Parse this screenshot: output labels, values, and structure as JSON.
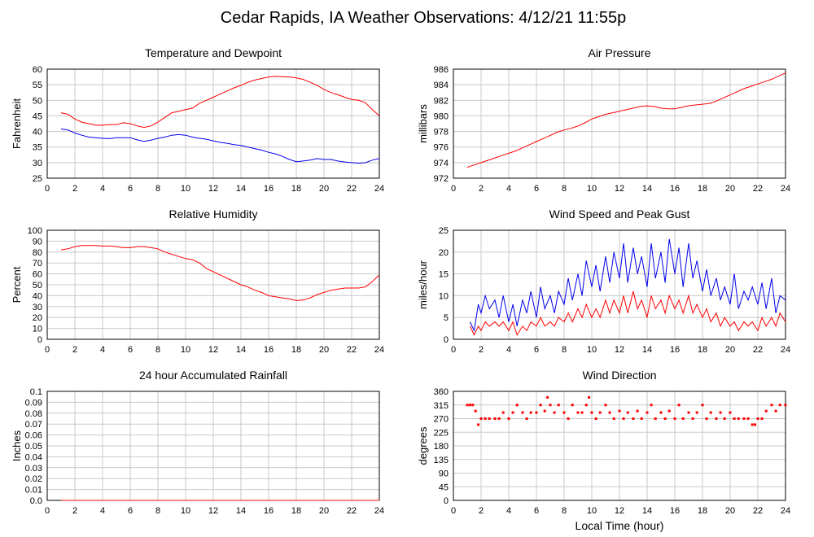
{
  "page": {
    "title": "Cedar Rapids, IA Weather Observations: 4/12/21 11:55p",
    "xlabel": "Local Time (hour)"
  },
  "colors": {
    "red": "#ff0000",
    "blue": "#0000ee",
    "grid": "#c8c8c8"
  },
  "chart_data": [
    {
      "id": "temp",
      "type": "line",
      "title": "Temperature and Dewpoint",
      "ylabel": "Fahrenheit",
      "xlim": [
        0,
        24
      ],
      "ylim": [
        25,
        60
      ],
      "xticks": [
        "0",
        "2",
        "4",
        "6",
        "8",
        "10",
        "12",
        "14",
        "16",
        "18",
        "20",
        "22",
        "24"
      ],
      "yticks": [
        "25",
        "30",
        "35",
        "40",
        "45",
        "50",
        "55",
        "60"
      ],
      "grid": true,
      "series": [
        {
          "color": "red",
          "x": [
            1.0,
            1.5,
            2.0,
            2.5,
            3.0,
            3.5,
            4.0,
            4.5,
            5.0,
            5.5,
            6.0,
            6.5,
            7.0,
            7.5,
            8.0,
            8.5,
            9.0,
            9.5,
            10.0,
            10.5,
            11.0,
            11.5,
            12.0,
            12.5,
            13.0,
            13.5,
            14.0,
            14.5,
            15.0,
            15.5,
            16.0,
            16.5,
            17.0,
            17.5,
            18.0,
            18.5,
            19.0,
            19.5,
            20.0,
            20.5,
            21.0,
            21.5,
            22.0,
            22.5,
            23.0,
            23.5,
            24.0
          ],
          "y": [
            46,
            45.5,
            44,
            43,
            42.5,
            42,
            42,
            42.2,
            42.2,
            42.8,
            42.5,
            41.8,
            41.3,
            41.8,
            43,
            44.5,
            46,
            46.5,
            47,
            47.5,
            49,
            50,
            51,
            52,
            53,
            54,
            54.8,
            55.8,
            56.5,
            57,
            57.5,
            57.7,
            57.6,
            57.5,
            57.2,
            56.7,
            55.8,
            54.8,
            53.5,
            52.5,
            51.8,
            51,
            50.3,
            50,
            49.2,
            47,
            45
          ]
        },
        {
          "color": "blue",
          "x": [
            1.0,
            1.5,
            2.0,
            2.5,
            3.0,
            3.5,
            4.0,
            4.5,
            5.0,
            5.5,
            6.0,
            6.5,
            7.0,
            7.5,
            8.0,
            8.5,
            9.0,
            9.5,
            10.0,
            10.5,
            11.0,
            11.5,
            12.0,
            12.5,
            13.0,
            13.5,
            14.0,
            14.5,
            15.0,
            15.5,
            16.0,
            16.5,
            17.0,
            17.5,
            18.0,
            18.5,
            19.0,
            19.5,
            20.0,
            20.5,
            21.0,
            21.5,
            22.0,
            22.5,
            23.0,
            23.5,
            24.0
          ],
          "y": [
            40.8,
            40.5,
            39.5,
            38.8,
            38.2,
            38,
            37.8,
            37.7,
            38,
            38,
            38,
            37.3,
            36.8,
            37.2,
            37.8,
            38.2,
            38.8,
            39,
            38.8,
            38.2,
            37.8,
            37.5,
            37,
            36.5,
            36.2,
            35.8,
            35.5,
            35,
            34.5,
            34,
            33.3,
            32.8,
            32,
            31,
            30.3,
            30.5,
            30.8,
            31.3,
            31,
            31,
            30.5,
            30.2,
            30,
            29.8,
            30,
            30.8,
            31.3
          ]
        }
      ]
    },
    {
      "id": "pressure",
      "type": "line",
      "title": "Air Pressure",
      "ylabel": "millibars",
      "xlim": [
        0,
        24
      ],
      "ylim": [
        972,
        986
      ],
      "xticks": [
        "0",
        "2",
        "4",
        "6",
        "8",
        "10",
        "12",
        "14",
        "16",
        "18",
        "20",
        "22",
        "24"
      ],
      "yticks": [
        "972",
        "974",
        "976",
        "978",
        "980",
        "982",
        "984",
        "986"
      ],
      "grid": true,
      "series": [
        {
          "color": "red",
          "x": [
            1.0,
            1.5,
            2.0,
            2.5,
            3.0,
            3.5,
            4.0,
            4.5,
            5.0,
            5.5,
            6.0,
            6.5,
            7.0,
            7.5,
            8.0,
            8.5,
            9.0,
            9.5,
            10.0,
            10.5,
            11.0,
            11.5,
            12.0,
            12.5,
            13.0,
            13.5,
            14.0,
            14.5,
            15.0,
            15.5,
            16.0,
            16.5,
            17.0,
            17.5,
            18.0,
            18.5,
            19.0,
            19.5,
            20.0,
            20.5,
            21.0,
            21.5,
            22.0,
            22.5,
            23.0,
            23.5,
            24.0
          ],
          "y": [
            973.4,
            973.7,
            974,
            974.3,
            974.6,
            974.9,
            975.2,
            975.5,
            975.9,
            976.3,
            976.7,
            977.1,
            977.5,
            977.9,
            978.2,
            978.4,
            978.7,
            979.1,
            979.6,
            979.9,
            980.2,
            980.4,
            980.6,
            980.8,
            981.0,
            981.2,
            981.3,
            981.2,
            981.0,
            980.9,
            980.9,
            981.1,
            981.3,
            981.4,
            981.5,
            981.6,
            981.9,
            982.3,
            982.7,
            983.1,
            983.5,
            983.8,
            984.1,
            984.4,
            984.7,
            985.1,
            985.5
          ]
        }
      ]
    },
    {
      "id": "humidity",
      "type": "line",
      "title": "Relative Humidity",
      "ylabel": "Percent",
      "xlim": [
        0,
        24
      ],
      "ylim": [
        0,
        100
      ],
      "xticks": [
        "0",
        "2",
        "4",
        "6",
        "8",
        "10",
        "12",
        "14",
        "16",
        "18",
        "20",
        "22",
        "24"
      ],
      "yticks": [
        "0",
        "10",
        "20",
        "30",
        "40",
        "50",
        "60",
        "70",
        "80",
        "90",
        "100"
      ],
      "grid": true,
      "series": [
        {
          "color": "red",
          "x": [
            1.0,
            1.5,
            2.0,
            2.5,
            3.0,
            3.5,
            4.0,
            4.5,
            5.0,
            5.5,
            6.0,
            6.5,
            7.0,
            7.5,
            8.0,
            8.5,
            9.0,
            9.5,
            10.0,
            10.5,
            11.0,
            11.5,
            12.0,
            12.5,
            13.0,
            13.5,
            14.0,
            14.5,
            15.0,
            15.5,
            16.0,
            16.5,
            17.0,
            17.5,
            18.0,
            18.5,
            19.0,
            19.5,
            20.0,
            20.5,
            21.0,
            21.5,
            22.0,
            22.5,
            23.0,
            23.5,
            24.0
          ],
          "y": [
            82,
            83,
            85,
            86,
            86,
            86,
            85.5,
            85.5,
            85,
            84,
            84,
            85,
            85,
            84,
            83,
            80,
            78,
            76,
            74,
            73,
            70,
            65,
            62,
            59,
            56,
            53,
            50,
            48,
            45,
            43,
            40,
            39,
            38,
            37,
            35.5,
            36,
            38,
            41,
            43,
            45,
            46,
            47,
            47,
            47,
            48,
            53,
            59
          ]
        }
      ]
    },
    {
      "id": "wind",
      "type": "line",
      "title": "Wind Speed and Peak Gust",
      "ylabel": "miles/hour",
      "xlim": [
        0,
        24
      ],
      "ylim": [
        0,
        25
      ],
      "xticks": [
        "0",
        "2",
        "4",
        "6",
        "8",
        "10",
        "12",
        "14",
        "16",
        "18",
        "20",
        "22",
        "24"
      ],
      "yticks": [
        "0",
        "5",
        "10",
        "15",
        "20",
        "25"
      ],
      "grid": true,
      "series": [
        {
          "color": "blue",
          "x": [
            1.2,
            1.5,
            1.8,
            2.0,
            2.3,
            2.6,
            3.0,
            3.3,
            3.6,
            4.0,
            4.3,
            4.6,
            5.0,
            5.3,
            5.6,
            6.0,
            6.3,
            6.6,
            7.0,
            7.3,
            7.6,
            8.0,
            8.3,
            8.6,
            9.0,
            9.3,
            9.6,
            10.0,
            10.3,
            10.6,
            11.0,
            11.3,
            11.6,
            12.0,
            12.3,
            12.6,
            13.0,
            13.3,
            13.6,
            14.0,
            14.3,
            14.6,
            15.0,
            15.3,
            15.6,
            16.0,
            16.3,
            16.6,
            17.0,
            17.3,
            17.6,
            18.0,
            18.3,
            18.6,
            19.0,
            19.3,
            19.6,
            20.0,
            20.3,
            20.6,
            21.0,
            21.3,
            21.6,
            22.0,
            22.3,
            22.6,
            23.0,
            23.3,
            23.6,
            24.0
          ],
          "y": [
            4,
            2,
            8,
            6,
            10,
            7,
            9,
            5,
            10,
            4,
            8,
            3,
            9,
            6,
            11,
            5,
            12,
            7,
            10,
            6,
            11,
            8,
            14,
            9,
            15,
            10,
            18,
            12,
            17,
            11,
            19,
            13,
            20,
            14,
            22,
            13,
            21,
            15,
            19,
            12,
            22,
            14,
            20,
            13,
            23,
            15,
            21,
            12,
            22,
            14,
            18,
            11,
            16,
            10,
            14,
            9,
            12,
            8,
            15,
            7,
            11,
            9,
            12,
            8,
            13,
            7,
            14,
            6,
            10,
            9
          ]
        },
        {
          "color": "red",
          "x": [
            1.2,
            1.5,
            1.8,
            2.0,
            2.3,
            2.6,
            3.0,
            3.3,
            3.6,
            4.0,
            4.3,
            4.6,
            5.0,
            5.3,
            5.6,
            6.0,
            6.3,
            6.6,
            7.0,
            7.3,
            7.6,
            8.0,
            8.3,
            8.6,
            9.0,
            9.3,
            9.6,
            10.0,
            10.3,
            10.6,
            11.0,
            11.3,
            11.6,
            12.0,
            12.3,
            12.6,
            13.0,
            13.3,
            13.6,
            14.0,
            14.3,
            14.6,
            15.0,
            15.3,
            15.6,
            16.0,
            16.3,
            16.6,
            17.0,
            17.3,
            17.6,
            18.0,
            18.3,
            18.6,
            19.0,
            19.3,
            19.6,
            20.0,
            20.3,
            20.6,
            21.0,
            21.3,
            21.6,
            22.0,
            22.3,
            22.6,
            23.0,
            23.3,
            23.6,
            24.0
          ],
          "y": [
            3,
            1,
            3,
            2,
            4,
            3,
            4,
            3,
            4,
            2,
            4,
            1,
            3,
            2,
            4,
            3,
            5,
            3,
            4,
            3,
            5,
            4,
            6,
            4,
            7,
            5,
            8,
            5,
            7,
            5,
            9,
            6,
            9,
            6,
            10,
            6,
            11,
            7,
            9,
            5,
            10,
            7,
            9,
            6,
            10,
            7,
            9,
            6,
            10,
            6,
            8,
            5,
            7,
            4,
            6,
            3,
            5,
            3,
            4,
            2,
            4,
            3,
            4,
            2,
            5,
            3,
            5,
            3,
            6,
            4
          ]
        }
      ]
    },
    {
      "id": "rain",
      "type": "line",
      "title": "24 hour Accumulated Rainfall",
      "ylabel": "Inches",
      "xlim": [
        0,
        24
      ],
      "ylim": [
        0,
        0.1
      ],
      "xticks": [
        "0",
        "2",
        "4",
        "6",
        "8",
        "10",
        "12",
        "14",
        "16",
        "18",
        "20",
        "22",
        "24"
      ],
      "yticks": [
        "0.0",
        "0.01",
        "0.02",
        "0.03",
        "0.04",
        "0.05",
        "0.06",
        "0.07",
        "0.08",
        "0.09",
        "0.1"
      ],
      "grid": true,
      "series": [
        {
          "color": "red",
          "x": [
            1.0,
            24.0
          ],
          "y": [
            0.0,
            0.0
          ]
        }
      ]
    },
    {
      "id": "direction",
      "type": "scatter",
      "title": "Wind Direction",
      "ylabel": "degrees",
      "xlim": [
        0,
        24
      ],
      "ylim": [
        0,
        360
      ],
      "xticks": [
        "0",
        "2",
        "4",
        "6",
        "8",
        "10",
        "12",
        "14",
        "16",
        "18",
        "20",
        "22",
        "24"
      ],
      "yticks": [
        "0",
        "45",
        "90",
        "135",
        "180",
        "225",
        "270",
        "315",
        "360"
      ],
      "grid": true,
      "series": [
        {
          "color": "red",
          "x": [
            1.0,
            1.2,
            1.4,
            1.6,
            1.8,
            2.0,
            2.3,
            2.6,
            3.0,
            3.3,
            3.6,
            4.0,
            4.3,
            4.6,
            5.0,
            5.3,
            5.6,
            6.0,
            6.3,
            6.6,
            6.8,
            7.0,
            7.3,
            7.6,
            8.0,
            8.3,
            8.6,
            9.0,
            9.3,
            9.6,
            9.8,
            10.0,
            10.3,
            10.6,
            11.0,
            11.3,
            11.6,
            12.0,
            12.3,
            12.6,
            13.0,
            13.3,
            13.6,
            14.0,
            14.3,
            14.6,
            15.0,
            15.3,
            15.6,
            16.0,
            16.3,
            16.6,
            17.0,
            17.3,
            17.6,
            18.0,
            18.3,
            18.6,
            19.0,
            19.3,
            19.6,
            20.0,
            20.3,
            20.6,
            21.0,
            21.3,
            21.6,
            21.8,
            22.0,
            22.3,
            22.6,
            23.0,
            23.3,
            23.6,
            24.0
          ],
          "y": [
            315,
            315,
            315,
            295,
            250,
            270,
            270,
            270,
            270,
            270,
            290,
            270,
            290,
            315,
            290,
            270,
            290,
            290,
            315,
            295,
            340,
            315,
            290,
            315,
            290,
            270,
            315,
            290,
            290,
            315,
            340,
            290,
            270,
            290,
            315,
            290,
            270,
            295,
            270,
            290,
            270,
            295,
            270,
            290,
            315,
            270,
            290,
            270,
            295,
            270,
            315,
            270,
            290,
            270,
            290,
            315,
            270,
            290,
            270,
            290,
            270,
            290,
            270,
            270,
            270,
            270,
            250,
            250,
            270,
            270,
            295,
            315,
            295,
            315,
            315
          ]
        }
      ]
    }
  ]
}
